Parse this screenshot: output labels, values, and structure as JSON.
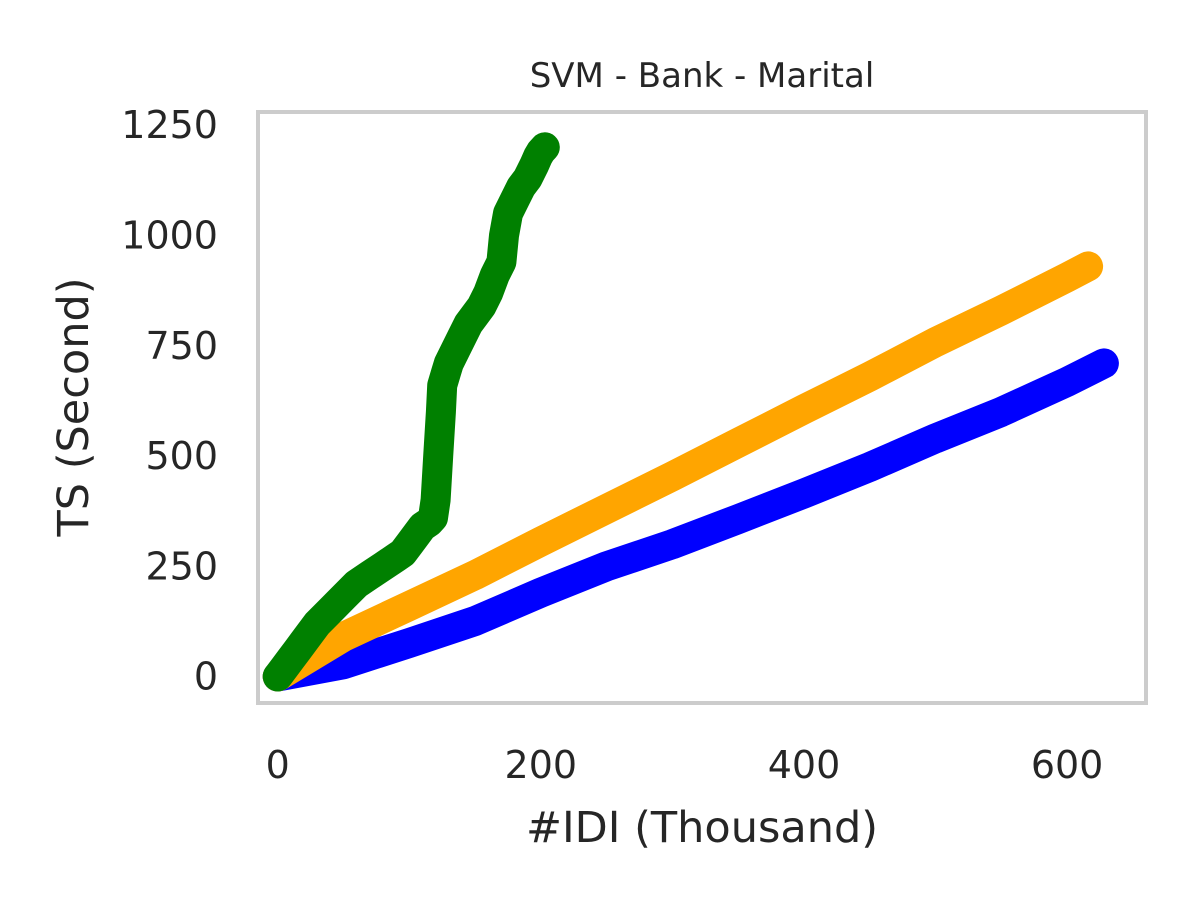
{
  "chart_data": {
    "type": "line",
    "title": "SVM - Bank - Marital",
    "xlabel": "#IDI (Thousand)",
    "ylabel": "TS (Second)",
    "xlim": [
      -15,
      660
    ],
    "ylim": [
      -60,
      1280
    ],
    "xticks": [
      0,
      200,
      400,
      600
    ],
    "yticks": [
      0,
      250,
      500,
      750,
      1000,
      1250
    ],
    "xtick_labels": [
      "0",
      "200",
      "400",
      "600"
    ],
    "ytick_labels": [
      "0",
      "250",
      "500",
      "750",
      "1000",
      "1250"
    ],
    "grid": false,
    "legend": null,
    "series": [
      {
        "color": "#0000ff",
        "x": [
          0,
          50,
          100,
          150,
          200,
          250,
          300,
          350,
          400,
          450,
          500,
          550,
          600,
          628
        ],
        "y": [
          0,
          28,
          76,
          126,
          190,
          250,
          300,
          357,
          415,
          475,
          540,
          600,
          668,
          710
        ]
      },
      {
        "color": "#ffa500",
        "x": [
          0,
          50,
          100,
          150,
          200,
          250,
          300,
          350,
          400,
          450,
          500,
          550,
          600,
          616
        ],
        "y": [
          0,
          90,
          160,
          230,
          306,
          380,
          454,
          530,
          606,
          680,
          758,
          830,
          905,
          930
        ]
      },
      {
        "color": "#008000",
        "x": [
          0,
          5,
          10,
          15,
          20,
          25,
          30,
          40,
          50,
          60,
          70,
          80,
          90,
          95,
          100,
          105,
          110,
          115,
          118,
          120,
          122,
          124,
          125,
          126,
          128,
          130,
          135,
          140,
          145,
          150,
          155,
          160,
          165,
          170,
          172,
          175,
          180,
          185,
          190,
          195,
          198,
          200,
          203
        ],
        "y": [
          0,
          20,
          40,
          60,
          80,
          100,
          120,
          150,
          180,
          210,
          230,
          250,
          270,
          280,
          300,
          320,
          340,
          350,
          360,
          400,
          500,
          600,
          660,
          670,
          690,
          710,
          740,
          770,
          800,
          820,
          840,
          870,
          910,
          940,
          1000,
          1050,
          1080,
          1110,
          1130,
          1160,
          1180,
          1190,
          1200
        ]
      }
    ]
  }
}
